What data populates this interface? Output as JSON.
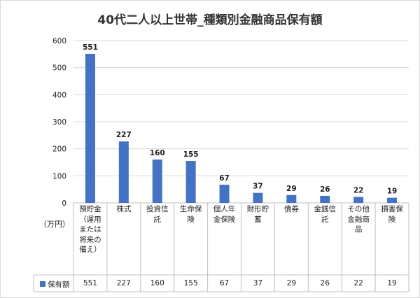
{
  "chart_data": {
    "type": "bar",
    "title": "40代二人以上世帯_種類別金融商品保有額",
    "unit_label": "（万円）",
    "categories": [
      "預貯金\n（運用\nまたは\n将来の\n備え）",
      "株式",
      "投資信\n託",
      "生命保\n険",
      "個人年\n金保険",
      "財形貯\n蓄",
      "債券",
      "金銭信\n託",
      "その他\n金融商\n品",
      "損害保\n険"
    ],
    "series": [
      {
        "name": "保有額",
        "values": [
          551,
          227,
          160,
          155,
          67,
          37,
          29,
          26,
          22,
          19
        ]
      }
    ],
    "y_ticks": [
      "0",
      "100",
      "200",
      "300",
      "400",
      "500",
      "600"
    ],
    "ylim": [
      0,
      600
    ],
    "grid": true,
    "bar_color": "#4472c4",
    "legend": "data-table"
  }
}
